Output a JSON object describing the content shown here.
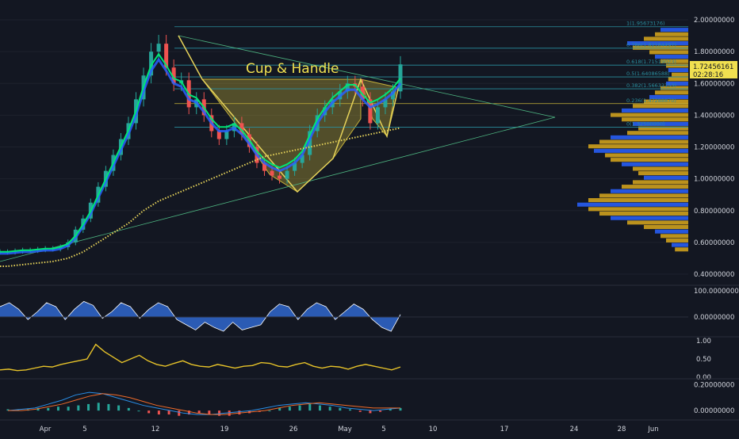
{
  "chart_data": {
    "type": "candlestick",
    "title": "",
    "annotation": "Cup & Handle",
    "price_panel": {
      "ylim": [
        0.37,
        2.1
      ],
      "y_ticks": [
        "2.00000000",
        "1.80000000",
        "1.60000000",
        "1.40000000",
        "1.20000000",
        "1.00000000",
        "0.80000000",
        "0.60000000",
        "0.40000000"
      ],
      "y_tick_values": [
        2.0,
        1.8,
        1.6,
        1.4,
        1.2,
        1.0,
        0.8,
        0.6,
        0.4
      ],
      "last_price_label": "1.72456161",
      "last_price": 1.7246,
      "countdown_label": "02:28:16",
      "fib_levels": [
        {
          "label": "1(1.95673176)",
          "value": 1.9567
        },
        {
          "label": "0.786(1.82184497)",
          "value": 1.8218
        },
        {
          "label": "0.618(1.71519023)",
          "value": 1.7152
        },
        {
          "label": "0.5(1.64086588)",
          "value": 1.6409
        },
        {
          "label": "0.382(1.56632153)",
          "value": 1.5663
        },
        {
          "label": "0.236(1.47288870)",
          "value": 1.4729
        },
        {
          "label": "0(1.32500000)",
          "value": 1.325
        }
      ],
      "close_series": [
        0.54,
        0.54,
        0.545,
        0.55,
        0.55,
        0.555,
        0.56,
        0.56,
        0.57,
        0.6,
        0.68,
        0.75,
        0.85,
        0.95,
        1.05,
        1.15,
        1.25,
        1.35,
        1.5,
        1.65,
        1.8,
        1.85,
        1.7,
        1.6,
        1.62,
        1.45,
        1.5,
        1.4,
        1.3,
        1.25,
        1.3,
        1.35,
        1.28,
        1.2,
        1.1,
        1.05,
        1.02,
        1.0,
        1.05,
        1.1,
        1.15,
        1.3,
        1.4,
        1.45,
        1.5,
        1.55,
        1.6,
        1.58,
        1.5,
        1.35,
        1.45,
        1.5,
        1.55,
        1.72
      ],
      "ema_series": [
        0.53,
        0.53,
        0.535,
        0.54,
        0.54,
        0.545,
        0.55,
        0.55,
        0.56,
        0.58,
        0.63,
        0.7,
        0.78,
        0.88,
        0.98,
        1.08,
        1.18,
        1.28,
        1.4,
        1.55,
        1.68,
        1.75,
        1.68,
        1.6,
        1.58,
        1.5,
        1.48,
        1.42,
        1.35,
        1.3,
        1.3,
        1.32,
        1.28,
        1.22,
        1.15,
        1.1,
        1.07,
        1.05,
        1.07,
        1.1,
        1.15,
        1.25,
        1.35,
        1.42,
        1.48,
        1.52,
        1.56,
        1.56,
        1.5,
        1.45,
        1.47,
        1.5,
        1.54,
        1.6
      ],
      "ma_series": [
        0.45,
        0.45,
        0.455,
        0.46,
        0.465,
        0.47,
        0.475,
        0.48,
        0.49,
        0.5,
        0.52,
        0.54,
        0.57,
        0.6,
        0.63,
        0.66,
        0.69,
        0.72,
        0.76,
        0.8,
        0.83,
        0.86,
        0.88,
        0.9,
        0.92,
        0.94,
        0.96,
        0.98,
        1.0,
        1.02,
        1.04,
        1.06,
        1.08,
        1.1,
        1.12,
        1.14,
        1.15,
        1.16,
        1.17,
        1.18,
        1.19,
        1.2,
        1.21,
        1.22,
        1.23,
        1.24,
        1.25,
        1.26,
        1.27,
        1.28,
        1.29,
        1.3,
        1.31,
        1.32
      ]
    },
    "osc_panel": {
      "y_ticks": [
        "100.00000000",
        "0.00000000"
      ],
      "values": [
        40,
        55,
        30,
        -10,
        20,
        55,
        40,
        -10,
        30,
        60,
        45,
        -5,
        20,
        55,
        40,
        -5,
        30,
        55,
        40,
        -10,
        -30,
        -50,
        -20,
        -40,
        -55,
        -20,
        -50,
        -40,
        -30,
        20,
        50,
        40,
        -10,
        30,
        55,
        40,
        -10,
        20,
        50,
        30,
        -10,
        -40,
        -55,
        10
      ]
    },
    "vol_panel": {
      "y_ticks": [
        "1.00",
        "0.50",
        "0.00"
      ],
      "values": [
        0.2,
        0.22,
        0.18,
        0.2,
        0.25,
        0.3,
        0.28,
        0.35,
        0.4,
        0.45,
        0.5,
        0.9,
        0.7,
        0.55,
        0.4,
        0.5,
        0.6,
        0.45,
        0.35,
        0.3,
        0.38,
        0.45,
        0.35,
        0.3,
        0.28,
        0.35,
        0.3,
        0.25,
        0.3,
        0.32,
        0.4,
        0.38,
        0.3,
        0.28,
        0.35,
        0.4,
        0.3,
        0.25,
        0.3,
        0.28,
        0.22,
        0.3,
        0.35,
        0.3,
        0.25,
        0.2,
        0.28
      ]
    },
    "macd_panel": {
      "y_ticks": [
        "0.20000000",
        "0.00000000"
      ],
      "hist": [
        0.01,
        0.01,
        0.01,
        0.02,
        0.02,
        0.03,
        0.03,
        0.04,
        0.05,
        0.06,
        0.05,
        0.04,
        0.02,
        0.0,
        -0.02,
        -0.03,
        -0.03,
        -0.04,
        -0.03,
        -0.02,
        -0.03,
        -0.04,
        -0.04,
        -0.03,
        -0.02,
        -0.01,
        0.0,
        0.02,
        0.03,
        0.04,
        0.05,
        0.04,
        0.03,
        0.02,
        0.01,
        -0.01,
        -0.02,
        -0.01,
        0.01,
        0.02
      ],
      "macd": [
        0.0,
        0.01,
        0.02,
        0.05,
        0.08,
        0.12,
        0.14,
        0.13,
        0.1,
        0.07,
        0.04,
        0.02,
        0.0,
        -0.02,
        -0.03,
        -0.03,
        -0.02,
        -0.01,
        0.0,
        0.02,
        0.04,
        0.05,
        0.06,
        0.05,
        0.04,
        0.02,
        0.01,
        0.0,
        0.01,
        0.02
      ],
      "signal": [
        0.0,
        0.0,
        0.01,
        0.03,
        0.05,
        0.08,
        0.11,
        0.13,
        0.12,
        0.1,
        0.07,
        0.04,
        0.02,
        0.0,
        -0.02,
        -0.03,
        -0.03,
        -0.02,
        -0.01,
        0.0,
        0.02,
        0.04,
        0.05,
        0.06,
        0.05,
        0.04,
        0.03,
        0.02,
        0.02,
        0.02
      ]
    },
    "x_ticks": [
      "Apr",
      "5",
      "12",
      "19",
      "26",
      "May",
      "5",
      "10",
      "17",
      "24",
      "28",
      "Jun"
    ],
    "volume_profile": [
      0.25,
      0.3,
      0.4,
      0.55,
      0.5,
      0.35,
      0.3,
      0.25,
      0.2,
      0.18,
      0.15,
      0.18,
      0.2,
      0.25,
      0.3,
      0.35,
      0.4,
      0.5,
      0.6,
      0.7,
      0.6,
      0.5,
      0.45,
      0.55,
      0.7,
      0.8,
      0.9,
      0.85,
      0.75,
      0.7,
      0.6,
      0.5,
      0.45,
      0.4,
      0.5,
      0.6,
      0.7,
      0.8,
      0.9,
      1.0,
      0.9,
      0.8,
      0.7,
      0.55,
      0.4,
      0.3,
      0.25,
      0.2,
      0.15,
      0.12
    ],
    "colors": {
      "background": "#131722",
      "grid": "#1e222d",
      "text": "#d1d4dc",
      "fib": "#2a8f9f",
      "cup": "#c8b43a",
      "ema_green": "#00e676",
      "ema_blue": "#2962ff",
      "ma_yellow": "#e6d35a",
      "profile_yellow": "#d9a81c",
      "profile_blue": "#2962ff",
      "osc_fill": "#2f63c4",
      "vol_line": "#e6c229",
      "macd_line": "#2a8ee6",
      "signal_line": "#ef6b2a",
      "hist_up": "#26a69a",
      "hist_down": "#ef5350"
    }
  }
}
